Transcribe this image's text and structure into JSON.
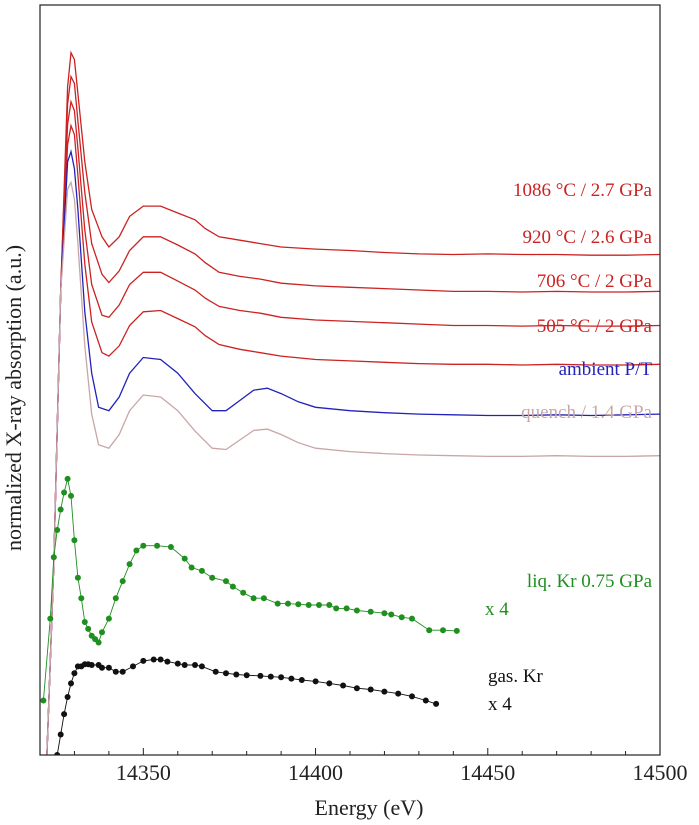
{
  "chart_data": {
    "type": "line",
    "xlabel": "Energy (eV)",
    "ylabel": "normalized X-ray absorption (a.u.)",
    "xlim": [
      14320,
      14500
    ],
    "ylim": [
      0,
      11
    ],
    "x_ticks": [
      14350,
      14400,
      14450,
      14500
    ],
    "y_ticks_labeled": false,
    "grid": false,
    "series": [
      {
        "name": "1086 °C / 2.7 GPa",
        "color": "#cc2222",
        "markers": false,
        "label_lines": [
          "1086 °C / 2.7 GPa"
        ],
        "x": [
          14322,
          14324,
          14326,
          14328,
          14329,
          14330,
          14331,
          14333,
          14335,
          14338,
          14340,
          14343,
          14346,
          14350,
          14355,
          14360,
          14365,
          14368,
          14372,
          14378,
          14384,
          14390,
          14400,
          14410,
          14420,
          14430,
          14440,
          14450,
          14460,
          14470,
          14480,
          14490,
          14500
        ],
        "y": [
          0.0,
          2.8,
          6.8,
          9.8,
          10.3,
          10.2,
          9.7,
          8.7,
          8.0,
          7.6,
          7.45,
          7.6,
          7.9,
          8.05,
          8.05,
          7.95,
          7.85,
          7.72,
          7.6,
          7.55,
          7.5,
          7.45,
          7.42,
          7.4,
          7.37,
          7.35,
          7.34,
          7.35,
          7.34,
          7.34,
          7.33,
          7.33,
          7.34
        ]
      },
      {
        "name": "920 °C / 2.6 GPa",
        "color": "#cc2222",
        "markers": false,
        "label_lines": [
          "920 °C / 2.6 GPa"
        ],
        "x": [
          14322,
          14324,
          14326,
          14328,
          14329,
          14330,
          14331,
          14333,
          14335,
          14338,
          14340,
          14343,
          14346,
          14350,
          14355,
          14360,
          14365,
          14368,
          14372,
          14378,
          14384,
          14390,
          14400,
          14410,
          14420,
          14430,
          14440,
          14450,
          14460,
          14470,
          14480,
          14490,
          14500
        ],
        "y": [
          0.0,
          2.8,
          6.8,
          9.55,
          9.95,
          9.85,
          9.3,
          8.25,
          7.5,
          7.05,
          6.93,
          7.1,
          7.4,
          7.6,
          7.6,
          7.48,
          7.35,
          7.22,
          7.08,
          7.02,
          6.98,
          6.92,
          6.88,
          6.86,
          6.84,
          6.82,
          6.8,
          6.8,
          6.79,
          6.8,
          6.79,
          6.79,
          6.8
        ]
      },
      {
        "name": "706 °C / 2 GPa",
        "color": "#cc2222",
        "markers": false,
        "label_lines": [
          "706 °C / 2 GPa"
        ],
        "x": [
          14322,
          14324,
          14326,
          14328,
          14329,
          14330,
          14331,
          14333,
          14335,
          14338,
          14340,
          14343,
          14346,
          14350,
          14355,
          14360,
          14365,
          14368,
          14372,
          14378,
          14384,
          14390,
          14400,
          14410,
          14420,
          14430,
          14440,
          14450,
          14460,
          14470,
          14480,
          14490,
          14500
        ],
        "y": [
          0.0,
          2.8,
          6.8,
          9.25,
          9.58,
          9.45,
          8.9,
          7.7,
          6.9,
          6.45,
          6.42,
          6.6,
          6.9,
          7.08,
          7.08,
          6.95,
          6.82,
          6.7,
          6.58,
          6.52,
          6.48,
          6.42,
          6.38,
          6.36,
          6.34,
          6.32,
          6.3,
          6.3,
          6.29,
          6.3,
          6.29,
          6.29,
          6.3
        ]
      },
      {
        "name": "505 °C / 2 GPa",
        "color": "#cc2222",
        "markers": false,
        "label_lines": [
          "505 °C / 2 GPa"
        ],
        "x": [
          14322,
          14324,
          14326,
          14328,
          14329,
          14330,
          14331,
          14333,
          14335,
          14338,
          14340,
          14343,
          14346,
          14350,
          14355,
          14360,
          14365,
          14368,
          14372,
          14378,
          14384,
          14390,
          14400,
          14410,
          14420,
          14430,
          14440,
          14450,
          14460,
          14470,
          14480,
          14490,
          14500
        ],
        "y": [
          0.0,
          2.8,
          6.8,
          8.95,
          9.23,
          9.1,
          8.5,
          7.2,
          6.35,
          5.9,
          5.85,
          6.0,
          6.3,
          6.5,
          6.52,
          6.4,
          6.28,
          6.15,
          6.02,
          5.95,
          5.9,
          5.85,
          5.8,
          5.78,
          5.76,
          5.74,
          5.73,
          5.73,
          5.72,
          5.73,
          5.72,
          5.72,
          5.73
        ]
      },
      {
        "name": "ambient P/T",
        "color": "#2222bb",
        "markers": false,
        "label_lines": [
          "ambient P/T"
        ],
        "x": [
          14322,
          14324,
          14326,
          14328,
          14329,
          14330,
          14331,
          14333,
          14335,
          14337,
          14340,
          14343,
          14346,
          14350,
          14355,
          14360,
          14365,
          14370,
          14374,
          14378,
          14382,
          14386,
          14390,
          14395,
          14400,
          14410,
          14420,
          14430,
          14440,
          14450,
          14460,
          14470,
          14480,
          14490,
          14500
        ],
        "y": [
          0.0,
          2.8,
          6.8,
          8.7,
          8.85,
          8.6,
          8.0,
          6.5,
          5.6,
          5.1,
          5.05,
          5.25,
          5.6,
          5.83,
          5.8,
          5.6,
          5.3,
          5.05,
          5.05,
          5.2,
          5.35,
          5.38,
          5.3,
          5.18,
          5.1,
          5.05,
          5.02,
          5.0,
          4.99,
          4.98,
          4.98,
          4.99,
          4.98,
          4.99,
          5.0
        ]
      },
      {
        "name": "quench / 1.4 GPa",
        "color": "#c9a6a6",
        "markers": false,
        "label_lines": [
          "quench / 1.4 GPa"
        ],
        "x": [
          14322,
          14324,
          14326,
          14328,
          14329,
          14330,
          14331,
          14333,
          14335,
          14337,
          14340,
          14343,
          14346,
          14350,
          14355,
          14360,
          14365,
          14370,
          14374,
          14378,
          14382,
          14386,
          14390,
          14395,
          14400,
          14410,
          14420,
          14430,
          14440,
          14450,
          14460,
          14470,
          14480,
          14490,
          14500
        ],
        "y": [
          0.0,
          2.8,
          6.8,
          8.3,
          8.4,
          8.15,
          7.5,
          6.0,
          5.0,
          4.55,
          4.5,
          4.7,
          5.05,
          5.28,
          5.25,
          5.05,
          4.75,
          4.5,
          4.48,
          4.62,
          4.76,
          4.78,
          4.7,
          4.58,
          4.5,
          4.45,
          4.42,
          4.4,
          4.39,
          4.38,
          4.38,
          4.39,
          4.38,
          4.38,
          4.39
        ]
      },
      {
        "name": "liq. Kr 0.75 GPa x 4",
        "color": "#1f8f1f",
        "markers": true,
        "label_lines": [
          "liq. Kr 0.75 GPa",
          "x 4"
        ],
        "x": [
          14321,
          14323,
          14324,
          14325,
          14326,
          14327,
          14328,
          14329,
          14330,
          14331,
          14332,
          14333,
          14334,
          14335,
          14336,
          14337,
          14338,
          14340,
          14342,
          14344,
          14346,
          14348,
          14350,
          14354,
          14358,
          14362,
          14364,
          14367,
          14370,
          14374,
          14376,
          14379,
          14382,
          14385,
          14389,
          14392,
          14395,
          14398,
          14401,
          14404,
          14406,
          14409,
          14412,
          14416,
          14420,
          14422,
          14425,
          14428,
          14433,
          14437,
          14441
        ],
        "y": [
          0.8,
          2.0,
          2.9,
          3.3,
          3.6,
          3.85,
          4.05,
          3.8,
          3.15,
          2.6,
          2.3,
          1.95,
          1.85,
          1.75,
          1.7,
          1.65,
          1.8,
          2.0,
          2.3,
          2.55,
          2.8,
          3.0,
          3.07,
          3.07,
          3.05,
          2.88,
          2.75,
          2.7,
          2.6,
          2.55,
          2.47,
          2.38,
          2.3,
          2.3,
          2.22,
          2.22,
          2.21,
          2.2,
          2.2,
          2.2,
          2.15,
          2.15,
          2.12,
          2.1,
          2.08,
          2.06,
          2.02,
          2.0,
          1.83,
          1.83,
          1.82
        ]
      },
      {
        "name": "gas. Kr x 4",
        "color": "#111111",
        "markers": true,
        "label_lines": [
          "gas. Kr",
          "x 4"
        ],
        "x": [
          14325,
          14326,
          14327,
          14328,
          14329,
          14330,
          14331,
          14332,
          14333,
          14334,
          14335,
          14337,
          14338,
          14340,
          14342,
          14344,
          14347,
          14350,
          14353,
          14355,
          14357,
          14360,
          14362,
          14365,
          14367,
          14371,
          14374,
          14377,
          14380,
          14384,
          14387,
          14390,
          14393,
          14396,
          14400,
          14404,
          14408,
          14412,
          14416,
          14420,
          14424,
          14428,
          14432,
          14435
        ],
        "y": [
          0.0,
          0.3,
          0.6,
          0.85,
          1.05,
          1.2,
          1.3,
          1.3,
          1.33,
          1.33,
          1.32,
          1.32,
          1.28,
          1.28,
          1.22,
          1.22,
          1.3,
          1.38,
          1.4,
          1.4,
          1.37,
          1.34,
          1.32,
          1.32,
          1.3,
          1.22,
          1.2,
          1.18,
          1.17,
          1.16,
          1.15,
          1.14,
          1.12,
          1.1,
          1.08,
          1.05,
          1.02,
          0.98,
          0.96,
          0.93,
          0.9,
          0.86,
          0.8,
          0.75
        ]
      }
    ]
  }
}
